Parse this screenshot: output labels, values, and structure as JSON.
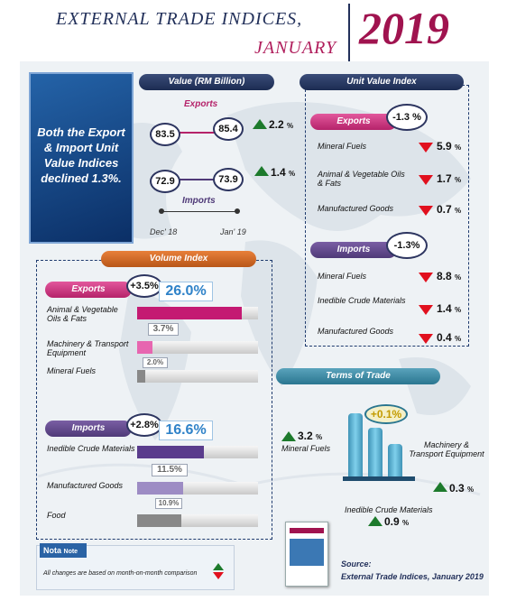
{
  "header": {
    "title": "EXTERNAL TRADE  INDICES,",
    "month": "JANUARY",
    "year": "2019"
  },
  "summary": "Both the Export & Import Unit Value Indices declined 1.3%.",
  "value_section": {
    "title": "Value (RM Billion)",
    "exports_label": "Exports",
    "imports_label": "Imports",
    "exports_dec": "83.5",
    "exports_jan": "85.4",
    "exports_change": "2.2",
    "imports_dec": "72.9",
    "imports_jan": "73.9",
    "imports_change": "1.4",
    "pct_sign": "%",
    "axis_start": "Dec' 18",
    "axis_end": "Jan' 19"
  },
  "unit_value": {
    "title": "Unit Value Index",
    "exports_label": "Exports",
    "exports_change": "-1.3 %",
    "exports_items": [
      {
        "name": "Mineral Fuels",
        "value": "5.9"
      },
      {
        "name": "Animal & Vegetable Oils & Fats",
        "value": "1.7"
      },
      {
        "name": "Manufactured  Goods",
        "value": "0.7"
      }
    ],
    "imports_label": "Imports",
    "imports_change": "-1.3%",
    "imports_items": [
      {
        "name": "Mineral Fuels",
        "value": "8.8"
      },
      {
        "name": "Inedible Crude Materials",
        "value": "1.4"
      },
      {
        "name": "Manufactured  Goods",
        "value": "0.4"
      }
    ]
  },
  "volume": {
    "title": "Volume Index",
    "exports_label": "Exports",
    "exports_change": "+3.5%",
    "exports_top": "26.0%",
    "exports_items": [
      {
        "name": "Animal & Vegetable Oils & Fats",
        "value": "",
        "level": 0.26
      },
      {
        "name": "Machinery & Transport Equipment",
        "value": "3.7%",
        "level": 0.037
      },
      {
        "name": "Mineral Fuels",
        "value": "2.0%",
        "level": 0.02
      }
    ],
    "imports_label": "Imports",
    "imports_change": "+2.8%",
    "imports_top": "16.6%",
    "imports_items": [
      {
        "name": "Inedible Crude Materials",
        "value": "",
        "level": 0.166
      },
      {
        "name": "Manufactured Goods",
        "value": "11.5%",
        "level": 0.115
      },
      {
        "name": "Food",
        "value": "10.9%",
        "level": 0.109
      }
    ]
  },
  "terms_of_trade": {
    "title": "Terms of Trade",
    "overall": "+0.1%",
    "mineral_fuels_label": "Mineral Fuels",
    "mineral_fuels_value": "3.2",
    "machinery_label": "Machinery & Transport Equipment",
    "machinery_value": "0.3",
    "inedible_label": "Inedible  Crude Materials",
    "inedible_value": "0.9"
  },
  "note": {
    "title": "Nota",
    "sub": "Note",
    "text": "All changes  are  based  on  month-on-month  comparison"
  },
  "source": {
    "label": "Source:",
    "text": "External Trade Indices, January 2019"
  },
  "colors": {
    "navy": "#22305a",
    "magenta": "#b01e5c",
    "up_green": "#1d7a2c",
    "down_red": "#e1101e"
  }
}
